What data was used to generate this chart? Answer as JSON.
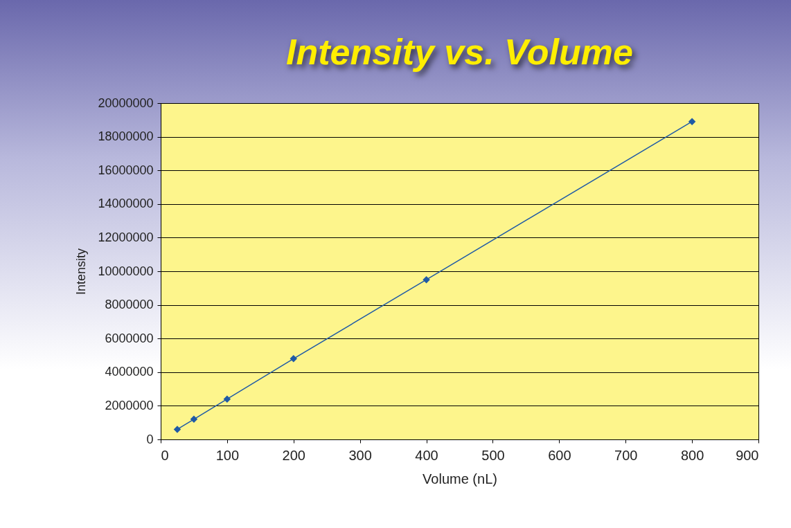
{
  "chart_data": {
    "type": "line",
    "title": "Intensity vs. Volume",
    "xlabel": "Volume (nL)",
    "ylabel": "Intensity",
    "x": [
      25,
      50,
      100,
      200,
      400,
      800
    ],
    "series": [
      {
        "color": "#1f5aa6",
        "values": [
          600000,
          1200000,
          2400000,
          4800000,
          9500000,
          18900000
        ]
      }
    ],
    "xlim": [
      0,
      900
    ],
    "xticks": [
      0,
      100,
      200,
      300,
      400,
      500,
      600,
      700,
      800,
      900
    ],
    "ylim": [
      0,
      20000000
    ],
    "yticks": [
      0,
      2000000,
      4000000,
      6000000,
      8000000,
      10000000,
      12000000,
      14000000,
      16000000,
      18000000,
      20000000
    ],
    "grid": "y",
    "marker": "diamond",
    "line_style": "solid"
  }
}
